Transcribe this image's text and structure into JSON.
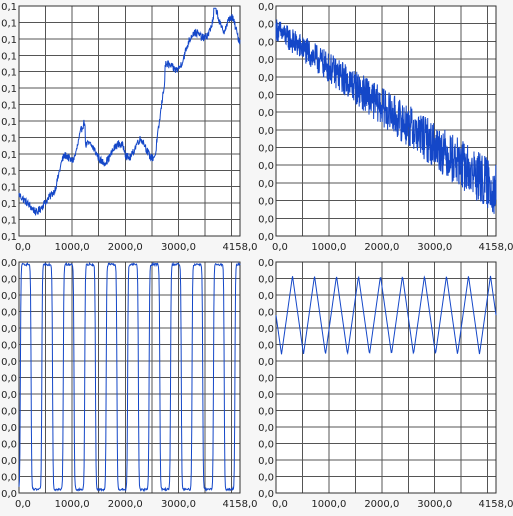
{
  "chart_data": [
    {
      "type": "line",
      "series": [
        {
          "values": []
        }
      ],
      "x_ticks": [
        "0,0",
        "1000,0",
        "2000,0",
        "3000,0",
        "4158,0"
      ],
      "y_ticks": [
        "0,1",
        "0,1",
        "0,1",
        "0,1",
        "0,1",
        "0,1",
        "0,1",
        "0,1",
        "0,1",
        "0,1",
        "0,1",
        "0,1",
        "0,1",
        "0,1",
        "0,1"
      ],
      "xlim": [
        0,
        4158
      ],
      "grid": true,
      "color": "#1447c8"
    },
    {
      "type": "line",
      "series": [
        {
          "values": []
        }
      ],
      "x_ticks": [
        "0,0",
        "1000,0",
        "2000,0",
        "3000,0",
        "4158,0"
      ],
      "y_ticks": [
        "0,0",
        "0,0",
        "0,0",
        "0,0",
        "0,0",
        "0,0",
        "0,0",
        "0,0",
        "0,0",
        "0,0",
        "0,0",
        "0,0",
        "0,0",
        "0,0"
      ],
      "xlim": [
        0,
        4158
      ],
      "grid": true,
      "color": "#1447c8"
    },
    {
      "type": "line",
      "series": [
        {
          "values": []
        }
      ],
      "x_ticks": [
        "0,0",
        "1000,0",
        "2000,0",
        "3000,0",
        "4158,0"
      ],
      "y_ticks": [
        "0,0",
        "0,0",
        "0,0",
        "0,0",
        "0,0",
        "0,0",
        "0,0",
        "0,0",
        "0,0",
        "0,0",
        "0,0",
        "0,0",
        "0,0",
        "0,0",
        "0,0"
      ],
      "xlim": [
        0,
        4158
      ],
      "grid": true,
      "color": "#1447c8"
    },
    {
      "type": "line",
      "series": [
        {
          "values": []
        }
      ],
      "x_ticks": [
        "0,0",
        "1000,0",
        "2000,0",
        "3000,0",
        "4158,0"
      ],
      "y_ticks": [
        "0,0",
        "0,0",
        "0,0",
        "0,0",
        "0,0",
        "0,0",
        "0,0",
        "0,0",
        "0,0",
        "0,0",
        "0,0",
        "0,0",
        "0,0",
        "0,0",
        "0,0"
      ],
      "xlim": [
        0,
        4158
      ],
      "grid": true,
      "color": "#1447c8"
    }
  ]
}
